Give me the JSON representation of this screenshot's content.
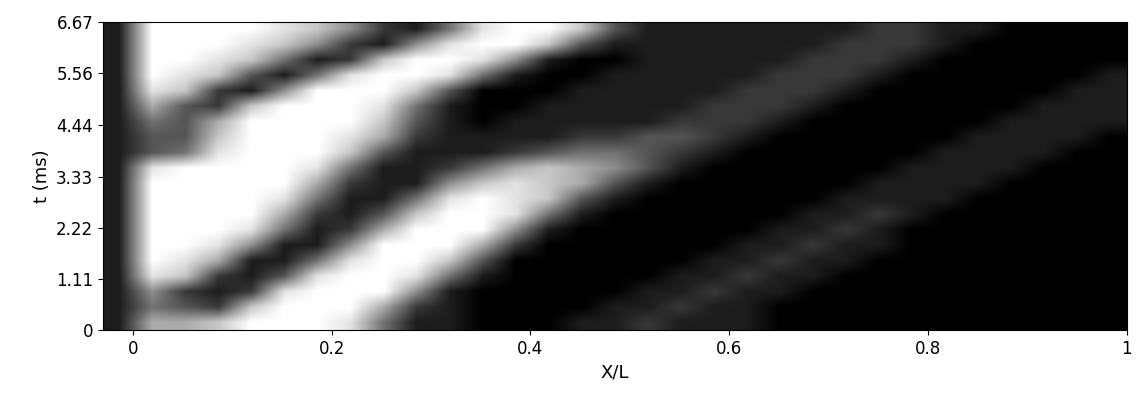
{
  "chart_data": {
    "type": "heatmap",
    "xlabel": "X/L",
    "ylabel": "t (ms)",
    "xlim": [
      -0.03,
      1
    ],
    "ylim": [
      0,
      6.67
    ],
    "xticks": [
      0,
      0.2,
      0.4,
      0.6,
      0.8,
      1
    ],
    "yticks": [
      0,
      1.11,
      2.22,
      3.33,
      4.44,
      5.56,
      6.67
    ],
    "color": "gray",
    "color_range": [
      0,
      9
    ],
    "cells": [
      [
        1,
        6,
        6,
        7,
        9,
        9,
        9,
        8,
        4,
        1,
        1,
        0,
        0,
        0,
        1,
        1,
        2,
        1,
        1,
        1,
        0,
        0,
        0,
        0,
        0,
        0,
        0,
        0,
        0,
        0,
        0
      ],
      [
        1,
        4,
        3,
        2,
        7,
        9,
        9,
        9,
        6,
        2,
        1,
        0,
        0,
        0,
        0,
        1,
        1,
        2,
        1,
        1,
        0,
        0,
        0,
        0,
        0,
        0,
        0,
        0,
        0,
        0,
        0
      ],
      [
        1,
        5,
        2,
        1,
        2,
        8,
        9,
        9,
        9,
        5,
        1,
        0,
        0,
        0,
        0,
        0,
        1,
        1,
        2,
        1,
        1,
        0,
        0,
        0,
        0,
        0,
        0,
        0,
        0,
        0,
        0
      ],
      [
        1,
        8,
        7,
        2,
        1,
        3,
        8,
        9,
        9,
        8,
        4,
        1,
        0,
        0,
        0,
        0,
        0,
        1,
        1,
        2,
        1,
        1,
        0,
        0,
        0,
        0,
        0,
        0,
        0,
        0,
        0
      ],
      [
        1,
        9,
        8,
        6,
        1,
        1,
        4,
        8,
        9,
        9,
        7,
        3,
        0,
        0,
        0,
        0,
        0,
        0,
        1,
        1,
        2,
        1,
        1,
        0,
        0,
        0,
        0,
        0,
        0,
        0,
        0
      ],
      [
        1,
        9,
        9,
        8,
        5,
        1,
        1,
        5,
        9,
        9,
        9,
        6,
        2,
        0,
        0,
        0,
        0,
        0,
        0,
        1,
        1,
        2,
        1,
        1,
        0,
        0,
        0,
        0,
        0,
        0,
        0
      ],
      [
        1,
        9,
        9,
        9,
        8,
        4,
        1,
        2,
        6,
        9,
        9,
        9,
        5,
        1,
        0,
        0,
        0,
        0,
        0,
        0,
        1,
        1,
        2,
        1,
        0,
        0,
        0,
        0,
        0,
        0,
        0
      ],
      [
        1,
        9,
        9,
        9,
        9,
        6,
        2,
        1,
        3,
        7,
        9,
        9,
        8,
        4,
        1,
        0,
        0,
        0,
        0,
        0,
        0,
        1,
        1,
        2,
        1,
        0,
        0,
        0,
        0,
        0,
        0
      ],
      [
        1,
        9,
        9,
        9,
        9,
        8,
        4,
        1,
        1,
        4,
        8,
        9,
        8,
        7,
        3,
        1,
        0,
        0,
        0,
        0,
        0,
        0,
        1,
        1,
        1,
        1,
        0,
        0,
        0,
        0,
        0
      ],
      [
        1,
        9,
        9,
        9,
        9,
        9,
        6,
        2,
        1,
        1,
        5,
        7,
        8,
        7,
        6,
        3,
        1,
        0,
        0,
        0,
        0,
        0,
        0,
        1,
        1,
        1,
        1,
        0,
        0,
        0,
        0
      ],
      [
        1,
        8,
        9,
        9,
        9,
        9,
        8,
        4,
        1,
        1,
        2,
        4,
        6,
        7,
        6,
        5,
        3,
        1,
        0,
        0,
        0,
        0,
        0,
        0,
        1,
        1,
        1,
        1,
        0,
        0,
        0
      ],
      [
        1,
        3,
        4,
        8,
        9,
        9,
        9,
        7,
        3,
        1,
        1,
        1,
        2,
        3,
        4,
        4,
        3,
        2,
        1,
        0,
        0,
        0,
        0,
        0,
        0,
        1,
        1,
        1,
        1,
        0,
        0
      ],
      [
        1,
        3,
        3,
        7,
        9,
        9,
        9,
        8,
        6,
        2,
        1,
        1,
        1,
        1,
        2,
        2,
        3,
        3,
        2,
        1,
        0,
        0,
        0,
        0,
        0,
        0,
        1,
        1,
        1,
        1,
        0
      ],
      [
        1,
        4,
        3,
        6,
        9,
        9,
        9,
        9,
        7,
        3,
        1,
        0,
        1,
        1,
        1,
        1,
        1,
        2,
        2,
        2,
        1,
        0,
        0,
        0,
        0,
        0,
        0,
        1,
        1,
        1,
        1
      ],
      [
        1,
        6,
        3,
        2,
        7,
        9,
        9,
        9,
        8,
        4,
        1,
        0,
        0,
        1,
        1,
        1,
        1,
        1,
        2,
        2,
        2,
        1,
        0,
        0,
        0,
        0,
        0,
        0,
        1,
        1,
        1
      ],
      [
        1,
        8,
        7,
        2,
        1,
        5,
        9,
        9,
        9,
        7,
        3,
        0,
        0,
        0,
        1,
        1,
        1,
        1,
        1,
        2,
        2,
        2,
        1,
        0,
        0,
        0,
        0,
        0,
        0,
        1,
        1
      ],
      [
        1,
        9,
        8,
        7,
        3,
        1,
        4,
        8,
        9,
        9,
        8,
        4,
        1,
        0,
        0,
        1,
        1,
        1,
        1,
        1,
        2,
        2,
        2,
        1,
        0,
        0,
        0,
        0,
        0,
        0,
        1
      ],
      [
        1,
        9,
        9,
        8,
        7,
        4,
        1,
        2,
        7,
        9,
        9,
        8,
        5,
        1,
        0,
        0,
        1,
        1,
        1,
        1,
        1,
        2,
        2,
        2,
        1,
        0,
        0,
        0,
        0,
        0,
        0
      ],
      [
        1,
        9,
        9,
        9,
        8,
        7,
        5,
        2,
        1,
        5,
        8,
        9,
        9,
        7,
        3,
        1,
        1,
        1,
        1,
        1,
        1,
        1,
        2,
        2,
        2,
        1,
        0,
        0,
        0,
        0,
        0
      ],
      [
        1,
        9,
        9,
        9,
        9,
        8,
        7,
        5,
        2,
        1,
        4,
        8,
        9,
        9,
        7,
        3,
        1,
        1,
        1,
        1,
        1,
        1,
        1,
        2,
        2,
        1,
        1,
        0,
        0,
        0,
        0
      ]
    ]
  }
}
